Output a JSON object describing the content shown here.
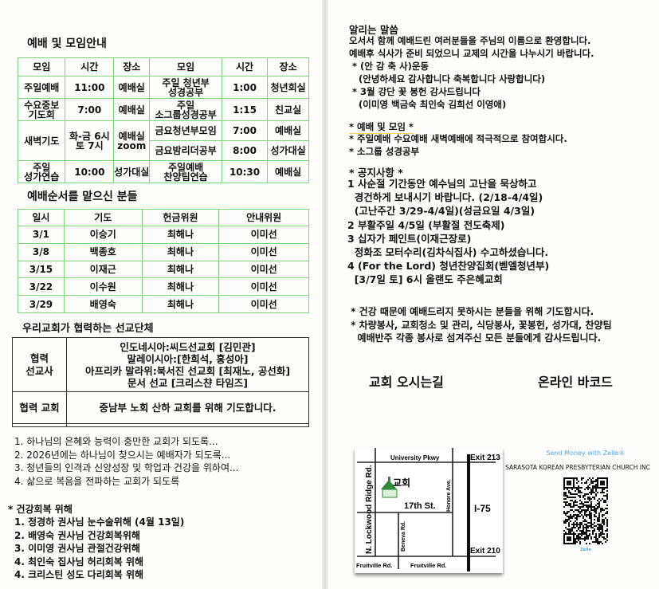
{
  "left": {
    "meetings": {
      "title": "예배 및 모임안내",
      "headers": [
        "모임",
        "시간",
        "장소",
        "모임",
        "시간",
        "장소"
      ],
      "rows": [
        [
          "주일예배",
          "11:00",
          "예배실",
          "주일 청년부\n성경공부",
          "1:00",
          "청년회실"
        ],
        [
          "수요중보\n기도회",
          "7:00",
          "예배실",
          "주일\n소그룹성경공부",
          "1:15",
          "친교실"
        ],
        [
          "새벽기도",
          "화-금 6시\n토 7시",
          "예배실\nzoom",
          "금요청년부모임",
          "7:00",
          "예배실"
        ],
        [
          "",
          "",
          "",
          "금요밤리더공부",
          "8:00",
          "성가대실"
        ],
        [
          "주일\n성가연습",
          "10:00",
          "성가대실",
          "주일예배\n찬양팀연습",
          "10:30",
          "예배실"
        ]
      ]
    },
    "servers": {
      "title": "예배순서를 맡으신 분들",
      "headers": [
        "일시",
        "기도",
        "헌금위원",
        "안내위원"
      ],
      "rows": [
        [
          "3/1",
          "이승기",
          "최해나",
          "이미선"
        ],
        [
          "3/8",
          "백종호",
          "최해나",
          "이미선"
        ],
        [
          "3/15",
          "이재근",
          "최해나",
          "이미선"
        ],
        [
          "3/22",
          "이수원",
          "최해나",
          "이미선"
        ],
        [
          "3/29",
          "배영숙",
          "최해나",
          "이미선"
        ]
      ]
    },
    "missions": {
      "title": "우리교회가 협력하는 선교단체",
      "missionary_label": "협력\n선교사",
      "missionaries": "인도네시아:씨드선교회 [김민관]\n말레이시아:[한희석, 홍성아]\n아프리카 말라위:북서진 선교회 [최재노, 공선화]\n문서 선교 [크리스챤 타임즈]",
      "church_label": "협력 교회",
      "church_text": "중남부 노회 산하 교회를 위해 기도합니다."
    },
    "prayers": [
      "1. 하나님의 은혜와 능력이 충만한 교회가 되도록...",
      "2. 2026년에는 하나님이 찾으시는 예배자가 되도록...",
      "3. 청년들의 인격과 신앙성장 및 학업과 건강을 위하여...",
      "4. 삶으로 복음을 전파하는 교회가 되도록"
    ],
    "health_title": "* 건강회복 위해",
    "health": [
      "1. 정경하 권사님 눈수술위해 (4월 13일)",
      "2. 배영숙 권사님 건강회복위해",
      "3. 이미영 권사님 관절건강위해",
      "4. 최인숙 집사님 허리회복 위해",
      "4. 크리스틴 성도 다리회복 위해"
    ]
  },
  "right": {
    "notice_title": "알리는 말씀",
    "notice_lines": [
      "오서서 함께 예배드린 여러분들을 주님의 이름으로 환영합니다.",
      "예배후 식사가 준비 되었으니 교제의 시간을 나누시기 바랍니다.",
      " * (안 감 축 사)운동",
      "   (안녕하세요 감사합니다 축복합니다 사랑합니다)",
      " * 3월 강단 꽃 봉헌 감사드립니다",
      "   (이미영 백금숙 최인숙 김희선 이영애)"
    ],
    "worship_title": "* 예배 및 모임 *",
    "worship_lines": [
      "* 주일예배 수요예배 새벽예배에 적극적으로 참여합시다.",
      "* 소그룹 성경공부"
    ],
    "announce_title": "* 공지사항 *",
    "announce_lines": [
      "1 사순절 기간동안 예수님의 고난을 묵상하고",
      "  경건하게 보내시기 바랍니다. (2/18-4/4일)",
      "  (고난주간 3/29-4/4일)(성금요일 4/3일)",
      "2 부활주일 4/5일 (부활절 전도축제)",
      "3 십자가 페인트(이재근장로)",
      "  정화조 모터수리(김차식집사) 수고하셨습니다.",
      "4 (For the Lord) 청년찬양집회(벧엘청년부)",
      "  [3/7일 토] 6시 올랜도 주은혜교회"
    ],
    "thanks_lines": [
      " * 건강 때문에 예배드리지 못하시는 분들을 위해 기도합시다.",
      " * 차량봉사, 교회청소 및 관리, 식당봉사, 꽃봉헌, 성가대, 찬양팀",
      "   예배반주 각종 봉사로 섬겨주신 모든 분들에게 감사드립니다."
    ],
    "directions_title": "교회 오시는길",
    "barcode_title": "온라인 바코드",
    "map": {
      "university": "University Pkwy",
      "exit213": "Exit 213",
      "lockwood": "N. Lockwood Ridge Rd.",
      "church": "교회",
      "st17": "17th St.",
      "honore": "Honore Ave.",
      "i75": "I-75",
      "beneva": "Beneva Rd.",
      "exit210": "Exit 210",
      "fruitville1": "Fruitville Rd.",
      "fruitville2": "Fruitville Rd."
    },
    "zelle": {
      "send": "Send Money with Zelle®",
      "org": "SARASOTA KOREAN PRESBYTERIAN CHURCH INC",
      "brand": "Zelle",
      "accent": "#5aa6e0"
    }
  },
  "colors": {
    "table_border": "#7ed67e",
    "church_icon": "#2f8a3a"
  }
}
